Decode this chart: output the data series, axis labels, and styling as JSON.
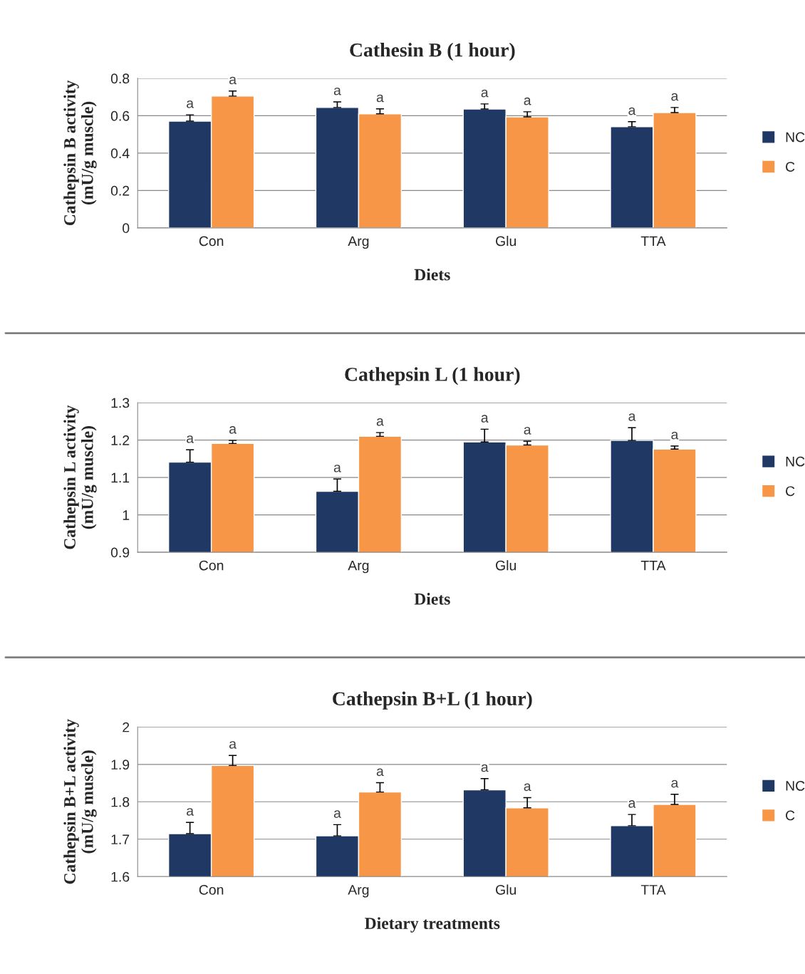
{
  "chart_data": [
    {
      "type": "bar",
      "title": "Cathesin B (1 hour)",
      "xlabel": "Diets",
      "ylabel": "Cathepsin B activity\n(mU/g muscle)",
      "categories": [
        "Con",
        "Arg",
        "Glu",
        "TTA"
      ],
      "series": [
        {
          "name": "NC",
          "color": "#1f3864",
          "values": [
            0.571,
            0.644,
            0.636,
            0.541
          ],
          "errors": [
            0.034,
            0.03,
            0.027,
            0.027
          ]
        },
        {
          "name": "C",
          "color": "#f79646",
          "values": [
            0.705,
            0.61,
            0.594,
            0.617
          ],
          "errors": [
            0.027,
            0.027,
            0.027,
            0.027
          ]
        }
      ],
      "ylim": [
        0,
        0.8
      ],
      "yticks": [
        {
          "value": 0,
          "label": "0"
        },
        {
          "value": 0.2,
          "label": "0.2"
        },
        {
          "value": 0.4,
          "label": "0.4"
        },
        {
          "value": 0.6,
          "label": "0.6"
        },
        {
          "value": 0.8,
          "label": "0.8"
        }
      ],
      "grid": "y",
      "legend": "right",
      "annotations": [
        "a",
        "a",
        "a",
        "a",
        "a",
        "a",
        "a",
        "a"
      ]
    },
    {
      "type": "bar",
      "title": "Cathepsin L (1 hour)",
      "xlabel": "Diets",
      "ylabel": "Cathepsin L activity\n(mU/g muscle)",
      "categories": [
        "Con",
        "Arg",
        "Glu",
        "TTA"
      ],
      "series": [
        {
          "name": "NC",
          "color": "#1f3864",
          "values": [
            1.141,
            1.063,
            1.195,
            1.199
          ],
          "errors": [
            0.033,
            0.033,
            0.034,
            0.034
          ]
        },
        {
          "name": "C",
          "color": "#f79646",
          "values": [
            1.191,
            1.21,
            1.187,
            1.176
          ],
          "errors": [
            0.008,
            0.01,
            0.01,
            0.008
          ]
        }
      ],
      "ylim": [
        0.9,
        1.3
      ],
      "yticks": [
        {
          "value": 0.9,
          "label": "0.9"
        },
        {
          "value": 1.0,
          "label": "1"
        },
        {
          "value": 1.1,
          "label": "1.1"
        },
        {
          "value": 1.2,
          "label": "1.2"
        },
        {
          "value": 1.3,
          "label": "1.3"
        }
      ],
      "grid": "y",
      "legend": "right",
      "annotations": [
        "a",
        "a",
        "a",
        "a",
        "a",
        "a",
        "a",
        "a"
      ]
    },
    {
      "type": "bar",
      "title": "Cathepsin B+L (1 hour)",
      "xlabel": "Dietary treatments",
      "ylabel": "Cathepsin B+L activity\n(mU/g muscle)",
      "categories": [
        "Con",
        "Arg",
        "Glu",
        "TTA"
      ],
      "series": [
        {
          "name": "NC",
          "color": "#1f3864",
          "values": [
            1.715,
            1.709,
            1.832,
            1.736
          ],
          "errors": [
            0.03,
            0.03,
            0.03,
            0.03
          ]
        },
        {
          "name": "C",
          "color": "#f79646",
          "values": [
            1.897,
            1.826,
            1.784,
            1.793
          ],
          "errors": [
            0.027,
            0.025,
            0.027,
            0.027
          ]
        }
      ],
      "ylim": [
        1.6,
        2.0
      ],
      "yticks": [
        {
          "value": 1.6,
          "label": "1.6"
        },
        {
          "value": 1.7,
          "label": "1.7"
        },
        {
          "value": 1.8,
          "label": "1.8"
        },
        {
          "value": 1.9,
          "label": "1.9"
        },
        {
          "value": 2.0,
          "label": "2"
        }
      ],
      "grid": "y",
      "legend": "right",
      "annotations": [
        "a",
        "a",
        "a",
        "a",
        "a",
        "a",
        "a",
        "a"
      ]
    }
  ]
}
